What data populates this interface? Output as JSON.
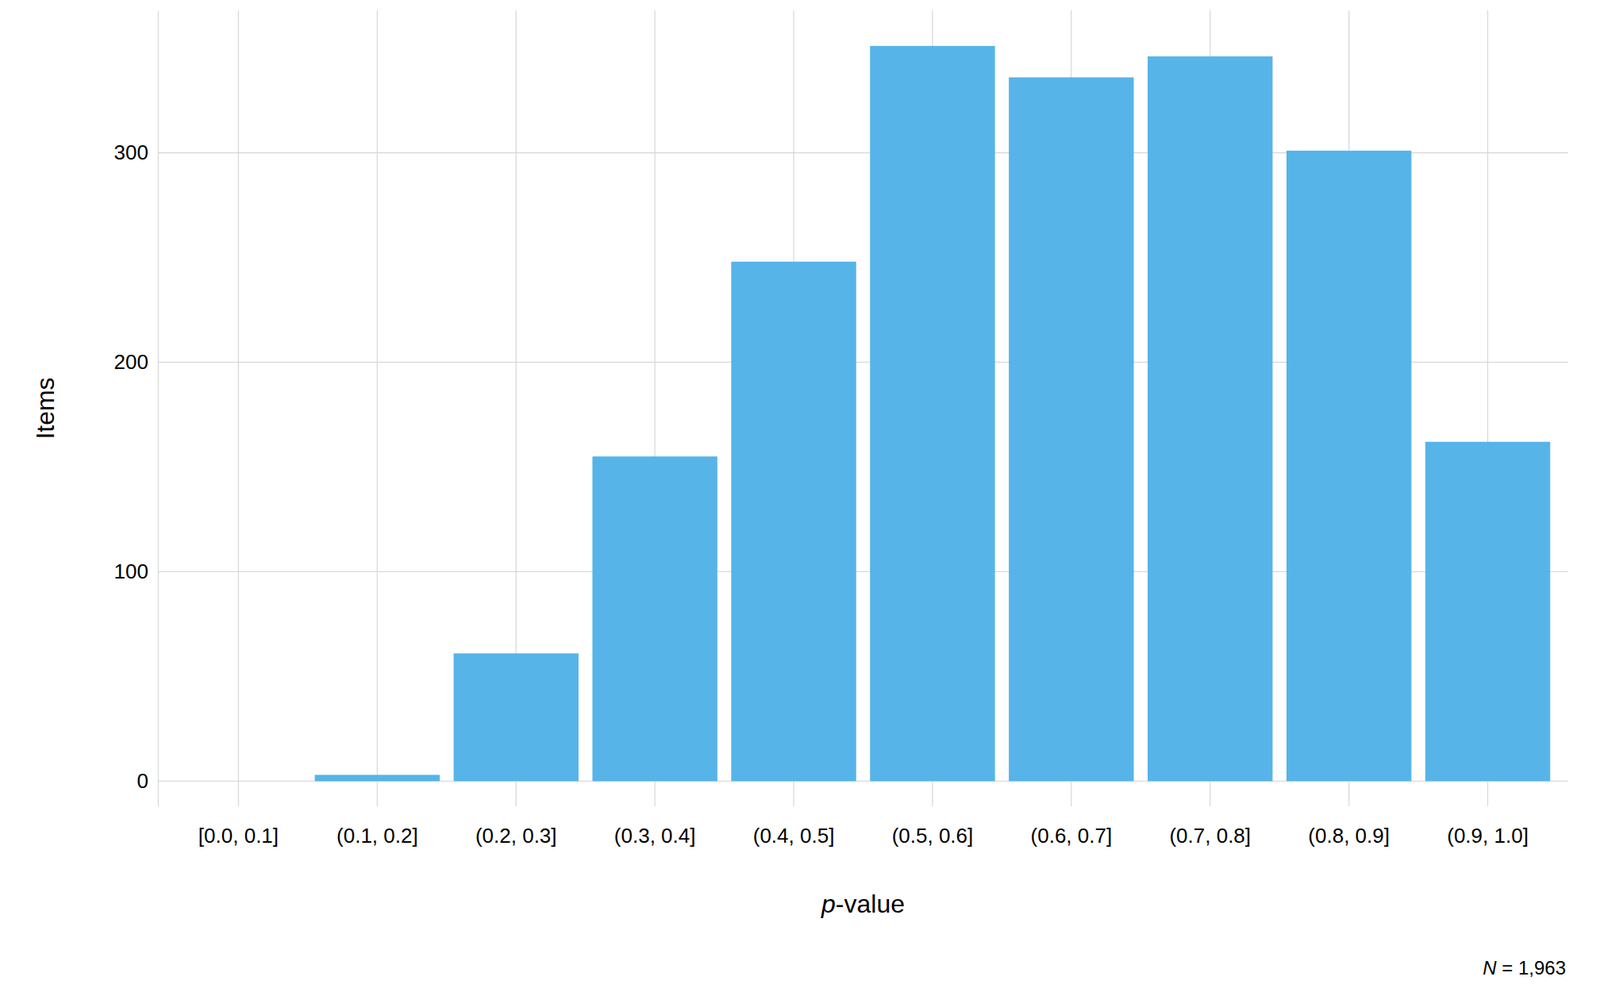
{
  "chart_data": {
    "type": "bar",
    "categories": [
      "[0.0, 0.1]",
      "(0.1, 0.2]",
      "(0.2, 0.3]",
      "(0.3, 0.4]",
      "(0.4, 0.5]",
      "(0.5, 0.6]",
      "(0.6, 0.7]",
      "(0.7, 0.8]",
      "(0.8, 0.9]",
      "(0.9, 1.0]"
    ],
    "values": [
      0,
      3,
      61,
      155,
      248,
      351,
      336,
      346,
      301,
      162
    ],
    "color": "#56b4e9",
    "x_label": "p-value",
    "y_label": "Items",
    "caption": "N = 1,963",
    "ylim": [
      -12,
      368
    ],
    "yticks": [
      0,
      100,
      200,
      300
    ],
    "grid": true
  }
}
